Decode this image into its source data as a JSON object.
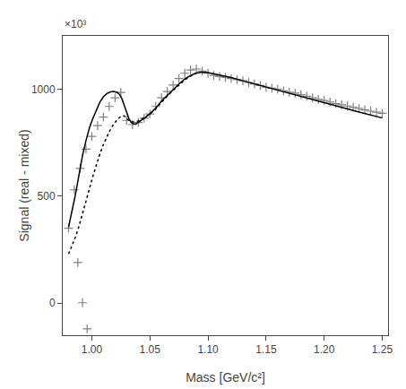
{
  "chart_data": {
    "type": "scatter",
    "xlabel": "Mass [GeV/c²]",
    "ylabel": "Signal (real - mixed)",
    "annotations": [
      "×10³"
    ],
    "xlim": [
      0.975,
      1.255
    ],
    "ylim": [
      -0.15,
      1.25
    ],
    "xticks": [
      {
        "value": 1.0,
        "label": "1.00"
      },
      1.05,
      {
        "value": 1.1,
        "label": "1.10"
      },
      1.15,
      {
        "value": 1.2,
        "label": "1.20"
      },
      1.25
    ],
    "yticks": [
      0,
      {
        "value": 0.5,
        "label": "500"
      },
      {
        "value": 1.0,
        "label": "1000"
      }
    ],
    "grid": false,
    "series": [
      {
        "type": "scatter",
        "marker": "+",
        "color": "#808080",
        "x": [
          0.98,
          0.985,
          0.99,
          0.995,
          1.0,
          1.005,
          1.01,
          1.015,
          1.02,
          1.025,
          1.03,
          1.035,
          1.04,
          1.045,
          1.05,
          1.055,
          1.06,
          1.065,
          1.07,
          1.075,
          1.08,
          1.085,
          1.09,
          1.095,
          1.1,
          1.105,
          1.11,
          1.115,
          1.12,
          1.125,
          1.13,
          1.135,
          1.14,
          1.145,
          1.15,
          1.155,
          1.16,
          1.165,
          1.17,
          1.175,
          1.18,
          1.185,
          1.19,
          1.195,
          1.2,
          1.205,
          1.21,
          1.215,
          1.22,
          1.225,
          1.23,
          1.235,
          1.24,
          1.245,
          1.25
        ],
        "values": [
          0.35,
          0.53,
          0.63,
          0.72,
          0.78,
          0.83,
          0.87,
          0.92,
          0.96,
          0.985,
          0.855,
          0.835,
          0.845,
          0.865,
          0.885,
          0.92,
          0.96,
          0.99,
          1.02,
          1.05,
          1.075,
          1.09,
          1.095,
          1.085,
          1.075,
          1.065,
          1.06,
          1.055,
          1.05,
          1.045,
          1.04,
          1.032,
          1.025,
          1.018,
          1.01,
          1.005,
          1.0,
          0.993,
          0.987,
          0.982,
          0.975,
          0.968,
          0.96,
          0.953,
          0.948,
          0.94,
          0.933,
          0.928,
          0.922,
          0.916,
          0.91,
          0.904,
          0.898,
          0.893,
          0.888
        ]
      },
      {
        "type": "scatter",
        "marker": "+",
        "color": "#808080",
        "x": [
          0.988,
          0.992,
          0.996
        ],
        "values": [
          0.19,
          0.002,
          -0.12
        ]
      },
      {
        "type": "line",
        "line_style": "solid",
        "color": "#000000",
        "x": [
          0.98,
          0.983,
          0.986,
          0.989,
          0.992,
          0.995,
          0.998,
          1.001,
          1.004,
          1.007,
          1.01,
          1.013,
          1.016,
          1.019,
          1.022,
          1.024,
          1.026,
          1.028,
          1.03,
          1.032,
          1.034,
          1.036,
          1.038,
          1.04,
          1.043,
          1.046,
          1.05,
          1.055,
          1.06,
          1.065,
          1.07,
          1.075,
          1.08,
          1.085,
          1.09,
          1.095,
          1.1,
          1.11,
          1.12,
          1.13,
          1.14,
          1.15,
          1.16,
          1.17,
          1.18,
          1.19,
          1.2,
          1.21,
          1.22,
          1.23,
          1.24,
          1.25
        ],
        "values": [
          0.355,
          0.43,
          0.51,
          0.6,
          0.69,
          0.76,
          0.82,
          0.865,
          0.905,
          0.94,
          0.965,
          0.98,
          0.988,
          0.99,
          0.985,
          0.975,
          0.955,
          0.925,
          0.89,
          0.862,
          0.845,
          0.838,
          0.838,
          0.845,
          0.856,
          0.868,
          0.885,
          0.912,
          0.945,
          0.973,
          1.0,
          1.025,
          1.048,
          1.065,
          1.076,
          1.08,
          1.078,
          1.068,
          1.055,
          1.04,
          1.025,
          1.01,
          0.995,
          0.98,
          0.965,
          0.95,
          0.936,
          0.922,
          0.908,
          0.894,
          0.88,
          0.866
        ]
      },
      {
        "type": "line",
        "line_style": "dotted",
        "color": "#000000",
        "x": [
          0.98,
          0.983,
          0.986,
          0.989,
          0.992,
          0.995,
          0.998,
          1.001,
          1.004,
          1.007,
          1.01,
          1.013,
          1.016,
          1.019,
          1.022,
          1.025,
          1.028,
          1.031,
          1.034,
          1.037,
          1.04,
          1.043,
          1.046,
          1.05,
          1.055,
          1.06,
          1.065,
          1.07,
          1.075,
          1.08,
          1.085,
          1.09
        ],
        "values": [
          0.23,
          0.268,
          0.31,
          0.36,
          0.415,
          0.475,
          0.535,
          0.595,
          0.648,
          0.698,
          0.742,
          0.78,
          0.812,
          0.838,
          0.858,
          0.873,
          0.876,
          0.858,
          0.848,
          0.848,
          0.852,
          0.86,
          0.87,
          0.885,
          0.91,
          0.94,
          0.968,
          0.995,
          1.02,
          1.044,
          1.062,
          1.075
        ]
      }
    ]
  }
}
